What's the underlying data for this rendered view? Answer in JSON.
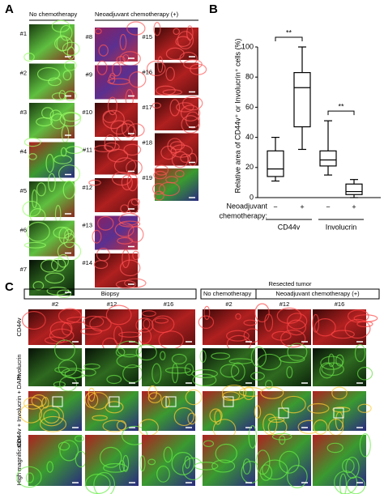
{
  "panel_labels": [
    "A",
    "B",
    "C"
  ],
  "panel_a": {
    "headers": [
      "No chemotherapy",
      "Neoadjuvant chemotherapy (+)"
    ],
    "samples": [
      "#1",
      "#2",
      "#3",
      "#4",
      "#5",
      "#6",
      "#7",
      "#8",
      "#9",
      "#10",
      "#11",
      "#12",
      "#13",
      "#14",
      "#15",
      "#16",
      "#17",
      "#18",
      "#19"
    ]
  },
  "chart_data": {
    "type": "box",
    "y_label": "Relative area of CD44v⁺ or Involucrin⁺ cells (%)",
    "ylim": [
      0,
      100
    ],
    "yticks": [
      0,
      20,
      40,
      60,
      80,
      100
    ],
    "categories": [
      "−",
      "+",
      "−",
      "+"
    ],
    "groups": [
      "CD44v",
      "Involucrin"
    ],
    "x_label": [
      "Neoadjuvant",
      "chemotherapy:"
    ],
    "color": "#ffffff",
    "boxes": [
      {
        "min": 11,
        "q1": 14,
        "median": 19,
        "q3": 31,
        "max": 40
      },
      {
        "min": 32,
        "q1": 47,
        "median": 73,
        "q3": 83,
        "max": 100
      },
      {
        "min": 15,
        "q1": 21,
        "median": 25,
        "q3": 31,
        "max": 51
      },
      {
        "min": 0,
        "q1": 2,
        "median": 4,
        "q3": 9,
        "max": 12
      }
    ],
    "annotations": [
      "**",
      "**"
    ]
  },
  "panel_c": {
    "groups": [
      "Biopsy",
      "Resected tumor"
    ],
    "subgroups": [
      "No chemotherapy",
      "Neoadjuvant chemotherapy (+)"
    ],
    "columns": [
      "#2",
      "#12",
      "#16",
      "#2",
      "#12",
      "#16"
    ],
    "rows": [
      "CD44v",
      "Involucrin",
      "CD44v + Involucrin + DAPI",
      "High magnification"
    ]
  }
}
